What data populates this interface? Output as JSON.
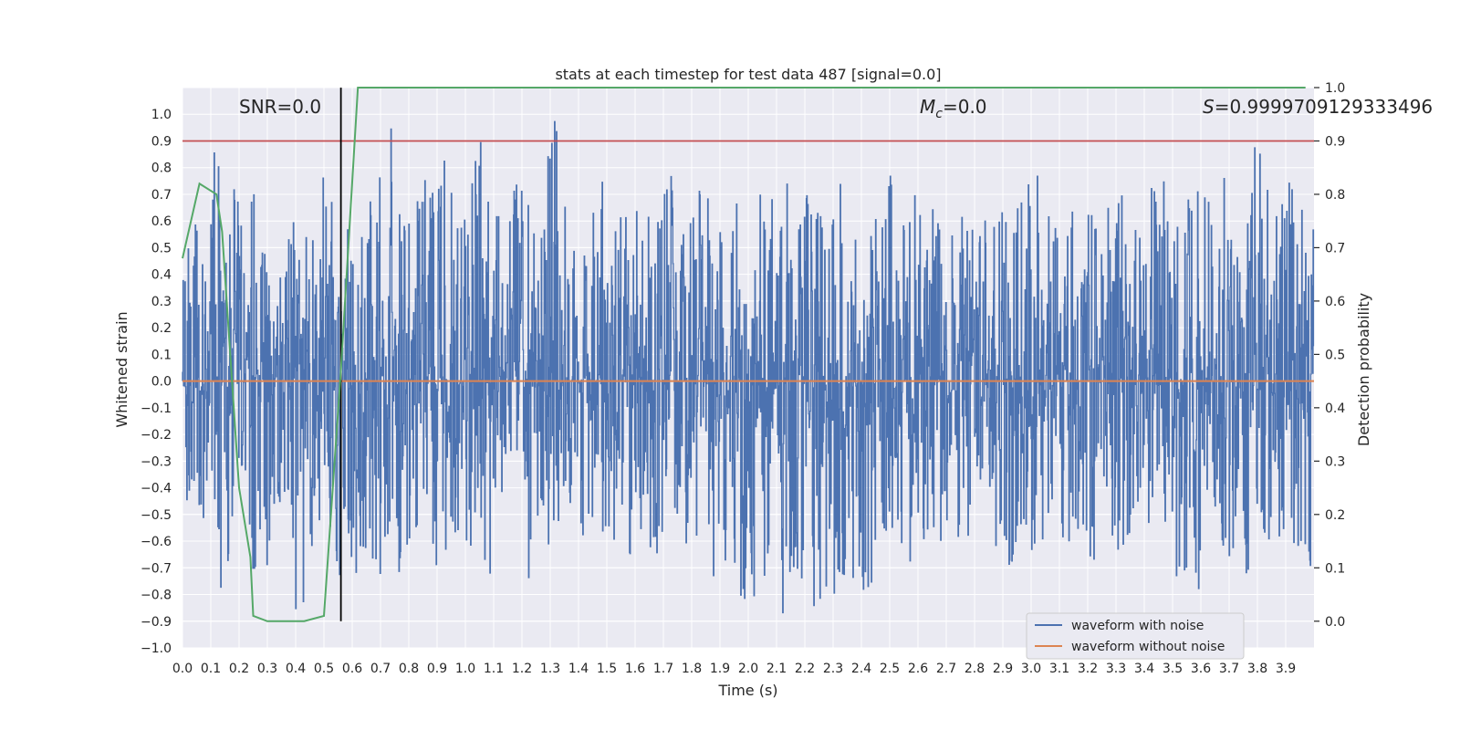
{
  "chart_data": {
    "type": "line",
    "title": "stats at each timestep for test data 487 [signal=0.0]",
    "xlabel": "Time (s)",
    "ylabel": "Whitened strain",
    "y2label": "Detection probability",
    "xlim": [
      0.0,
      4.0
    ],
    "ylim": [
      -1.0,
      1.1
    ],
    "y2lim": [
      -0.05,
      1.0
    ],
    "x_ticks": [
      0.0,
      0.1,
      0.2,
      0.3,
      0.4,
      0.5,
      0.6,
      0.7,
      0.8,
      0.9,
      1.0,
      1.1,
      1.2,
      1.3,
      1.4,
      1.5,
      1.6,
      1.7,
      1.8,
      1.9,
      2.0,
      2.1,
      2.2,
      2.3,
      2.4,
      2.5,
      2.6,
      2.7,
      2.8,
      2.9,
      3.0,
      3.1,
      3.2,
      3.3,
      3.4,
      3.5,
      3.6,
      3.7,
      3.8,
      3.9
    ],
    "y_ticks": [
      -1.0,
      -0.9,
      -0.8,
      -0.7,
      -0.6,
      -0.5,
      -0.4,
      -0.3,
      -0.2,
      -0.1,
      0.0,
      0.1,
      0.2,
      0.3,
      0.4,
      0.5,
      0.6,
      0.7,
      0.8,
      0.9,
      1.0
    ],
    "y2_ticks": [
      0.0,
      0.1,
      0.2,
      0.3,
      0.4,
      0.5,
      0.6,
      0.7,
      0.8,
      0.9,
      1.0
    ],
    "grid": true,
    "legend_position": "lower right",
    "annotations": {
      "snr": "SNR=0.0",
      "mc_prefix": "M",
      "mc_sub": "c",
      "mc_suffix": "=0.0",
      "s_prefix": "S",
      "s_suffix": "=0.9999709129333496"
    },
    "colors": {
      "noise": "#4c72b0",
      "clean": "#dd8452",
      "prob": "#55a868",
      "threshold": "#c44e52",
      "marker": "#000000",
      "bg": "#eaeaf2",
      "grid": "#ffffff"
    },
    "series": [
      {
        "name": "waveform with noise",
        "axis": "left",
        "envelope_max": [
          0.5,
          0.66,
          0.9,
          0.6,
          0.77,
          0.75,
          0.56,
          0.42,
          0.74,
          0.65,
          0.62,
          0.89,
          0.45,
          0.6,
          0.75,
          0.77,
          0.95,
          0.65,
          0.8,
          0.8,
          0.84,
          0.8,
          0.65,
          0.9,
          0.7,
          0.65,
          0.79,
          0.68,
          0.63,
          0.99,
          0.74,
          0.55,
          0.7,
          0.75,
          0.72,
          0.66,
          0.8,
          0.65,
          0.78,
          0.6,
          0.7,
          0.72,
          0.6,
          0.61,
          0.8,
          0.7,
          0.72,
          0.6,
          0.82,
          0.74,
          0.65,
          0.62,
          0.75,
          0.7,
          0.72,
          0.65,
          0.78,
          0.62,
          0.7,
          0.7,
          0.72,
          0.65,
          0.62,
          0.7,
          0.6,
          0.68,
          0.75,
          0.82,
          0.62,
          0.74,
          0.67,
          0.72,
          0.65,
          0.78,
          0.72,
          0.62,
          0.6,
          0.74,
          0.88,
          0.72,
          0.8,
          0.7,
          0.76,
          0.82,
          0.66,
          0.89,
          0.78,
          0.7,
          0.76,
          0.72
        ],
        "envelope_min": [
          -0.45,
          -0.52,
          -0.76,
          -0.78,
          -0.62,
          -0.75,
          -0.7,
          -0.6,
          -0.81,
          -0.9,
          -0.62,
          -0.58,
          -0.81,
          -0.74,
          -0.64,
          -0.78,
          -0.68,
          -0.74,
          -0.6,
          -0.65,
          -0.7,
          -0.6,
          -0.62,
          -0.58,
          -0.73,
          -0.56,
          -0.64,
          -0.77,
          -0.54,
          -0.62,
          -0.6,
          -0.7,
          -0.65,
          -0.6,
          -0.63,
          -0.71,
          -0.6,
          -0.68,
          -0.58,
          -0.6,
          -0.62,
          -0.64,
          -0.77,
          -0.75,
          -0.9,
          -0.82,
          -0.74,
          -0.88,
          -0.72,
          -0.86,
          -0.88,
          -0.8,
          -0.74,
          -0.86,
          -0.82,
          -0.6,
          -0.58,
          -0.7,
          -0.64,
          -0.62,
          -0.6,
          -0.66,
          -0.58,
          -0.6,
          -0.62,
          -0.72,
          -0.76,
          -0.66,
          -0.64,
          -0.62,
          -0.68,
          -0.6,
          -0.7,
          -0.64,
          -0.66,
          -0.62,
          -0.6,
          -0.72,
          -0.64,
          -0.82,
          -0.78,
          -0.6,
          -0.62,
          -0.7,
          -0.72,
          -0.66,
          -0.6,
          -0.64,
          -0.62,
          -0.72
        ]
      },
      {
        "name": "waveform without noise",
        "axis": "left",
        "x": [
          0.0,
          4.0
        ],
        "y": [
          0.0,
          0.0
        ]
      },
      {
        "name": "",
        "axis": "right",
        "x": [
          0.0,
          0.06,
          0.12,
          0.14,
          0.2,
          0.24,
          0.25,
          0.3,
          0.43,
          0.5,
          0.56,
          0.62,
          0.7,
          1.0,
          2.0,
          3.0,
          3.97
        ],
        "y": [
          0.68,
          0.82,
          0.8,
          0.73,
          0.25,
          0.12,
          0.01,
          0.0,
          0.0,
          0.01,
          0.47,
          1.0,
          1.0,
          1.0,
          1.0,
          1.0,
          1.0
        ]
      }
    ],
    "threshold_y2": 0.9,
    "marker_x": 0.56
  }
}
